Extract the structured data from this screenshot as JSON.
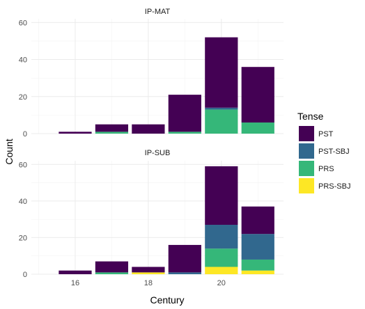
{
  "chart_data": {
    "type": "bar",
    "stacked": true,
    "xlabel": "Century",
    "ylabel": "Count",
    "x_ticks": [
      16,
      18,
      20
    ],
    "x_range": [
      14.8,
      21.7
    ],
    "y_ticks": [
      0,
      20,
      40,
      60
    ],
    "ylim": [
      0,
      62
    ],
    "grid": true,
    "legend": {
      "title": "Tense",
      "position": "right",
      "entries": [
        "PST",
        "PST-SBJ",
        "PRS",
        "PRS-SBJ"
      ]
    },
    "colors": {
      "PST": "#440154",
      "PST-SBJ": "#31688e",
      "PRS": "#35b779",
      "PRS-SBJ": "#fde725"
    },
    "stack_order": [
      "PRS-SBJ",
      "PRS",
      "PST-SBJ",
      "PST"
    ],
    "panels": [
      {
        "label": "IP-MAT",
        "categories": [
          16,
          17,
          18,
          19,
          20,
          21
        ],
        "series": [
          {
            "name": "PST",
            "values": [
              1,
              4,
              5,
              20,
              38,
              30
            ]
          },
          {
            "name": "PST-SBJ",
            "values": [
              0,
              0,
              0,
              0,
              1,
              0
            ]
          },
          {
            "name": "PRS",
            "values": [
              0,
              1,
              0,
              1,
              13,
              6
            ]
          },
          {
            "name": "PRS-SBJ",
            "values": [
              0,
              0,
              0,
              0,
              0,
              0
            ]
          }
        ]
      },
      {
        "label": "IP-SUB",
        "categories": [
          16,
          17,
          18,
          19,
          20,
          21
        ],
        "series": [
          {
            "name": "PST",
            "values": [
              2,
              6,
              3,
              15,
              32,
              15
            ]
          },
          {
            "name": "PST-SBJ",
            "values": [
              0,
              0,
              0,
              1,
              13,
              14
            ]
          },
          {
            "name": "PRS",
            "values": [
              0,
              1,
              0,
              0,
              10,
              6
            ]
          },
          {
            "name": "PRS-SBJ",
            "values": [
              0,
              0,
              1,
              0,
              4,
              2
            ]
          }
        ]
      }
    ]
  }
}
